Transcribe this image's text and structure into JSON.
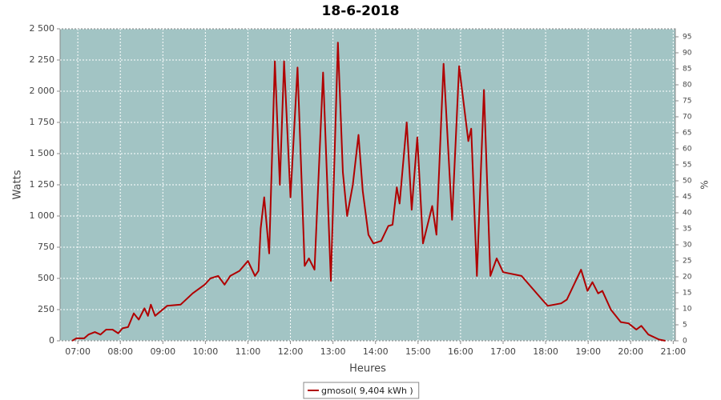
{
  "chart_data": {
    "type": "line",
    "title": "18-6-2018",
    "xlabel": "Heures",
    "ylabel": "Watts",
    "y2label": "%",
    "xlim": [
      "06:35",
      "21:03"
    ],
    "xticks": [
      "07:00",
      "08:00",
      "09:00",
      "10:00",
      "11:00",
      "12:00",
      "13:00",
      "14:00",
      "15:00",
      "16:00",
      "17:00",
      "18:00",
      "19:00",
      "20:00",
      "21:00"
    ],
    "ylim": [
      0,
      2500
    ],
    "yticks": [
      0,
      {
        "value": 250,
        "label": "250"
      },
      {
        "value": 500,
        "label": "500"
      },
      {
        "value": 750,
        "label": "750"
      },
      {
        "value": 1000,
        "label": "1 000"
      },
      {
        "value": 1250,
        "label": "1 250"
      },
      {
        "value": 1500,
        "label": "1 500"
      },
      {
        "value": 1750,
        "label": "1 750"
      },
      {
        "value": 2000,
        "label": "2 000"
      },
      {
        "value": 2250,
        "label": "2 250"
      },
      {
        "value": 2500,
        "label": "2 500"
      }
    ],
    "y2lim": [
      0,
      97.5
    ],
    "y2ticks": [
      0,
      5,
      10,
      15,
      20,
      25,
      30,
      35,
      40,
      45,
      50,
      55,
      60,
      65,
      70,
      75,
      80,
      85,
      90,
      95
    ],
    "grid": true,
    "legend": "bottom",
    "x": [
      "06:52",
      "06:58",
      "07:09",
      "07:15",
      "07:24",
      "07:32",
      "07:40",
      "07:49",
      "07:57",
      "08:03",
      "08:11",
      "08:19",
      "08:26",
      "08:34",
      "08:39",
      "08:43",
      "08:49",
      "09:06",
      "09:25",
      "09:42",
      "09:59",
      "10:07",
      "10:18",
      "10:27",
      "10:35",
      "10:48",
      "11:00",
      "11:10",
      "11:15",
      "11:18",
      "11:23",
      "11:30",
      "11:38",
      "11:45",
      "11:51",
      "12:00",
      "12:10",
      "12:20",
      "12:26",
      "12:34",
      "12:46",
      "12:57",
      "13:07",
      "13:14",
      "13:20",
      "13:28",
      "13:36",
      "13:42",
      "13:50",
      "13:57",
      "14:08",
      "14:18",
      "14:24",
      "14:30",
      "14:34",
      "14:44",
      "14:51",
      "14:59",
      "15:07",
      "15:20",
      "15:26",
      "15:36",
      "15:41",
      "15:48",
      "15:58",
      "16:11",
      "16:15",
      "16:23",
      "16:33",
      "16:42",
      "16:51",
      "17:00",
      "17:26",
      "17:55",
      "18:03",
      "18:22",
      "18:30",
      "18:50",
      "18:59",
      "19:06",
      "19:14",
      "19:20",
      "19:32",
      "19:46",
      "19:57",
      "20:08",
      "20:15",
      "20:25",
      "20:40",
      "20:49"
    ],
    "series": [
      {
        "name": "gmosol( 9,404 kWh )",
        "color": "#b00000",
        "values": [
          0,
          20,
          20,
          50,
          70,
          50,
          90,
          90,
          60,
          100,
          110,
          220,
          170,
          260,
          200,
          290,
          200,
          280,
          290,
          380,
          450,
          500,
          520,
          450,
          520,
          560,
          640,
          520,
          560,
          900,
          1150,
          700,
          2240,
          1250,
          2240,
          1150,
          2190,
          600,
          660,
          570,
          2150,
          480,
          2390,
          1350,
          1000,
          1250,
          1650,
          1200,
          850,
          780,
          800,
          920,
          930,
          1230,
          1100,
          1750,
          1050,
          1630,
          780,
          1080,
          850,
          2220,
          1700,
          970,
          2200,
          1600,
          1700,
          520,
          2010,
          520,
          660,
          550,
          520,
          330,
          280,
          300,
          330,
          570,
          400,
          470,
          380,
          400,
          250,
          150,
          140,
          90,
          120,
          50,
          10,
          0
        ]
      }
    ]
  }
}
